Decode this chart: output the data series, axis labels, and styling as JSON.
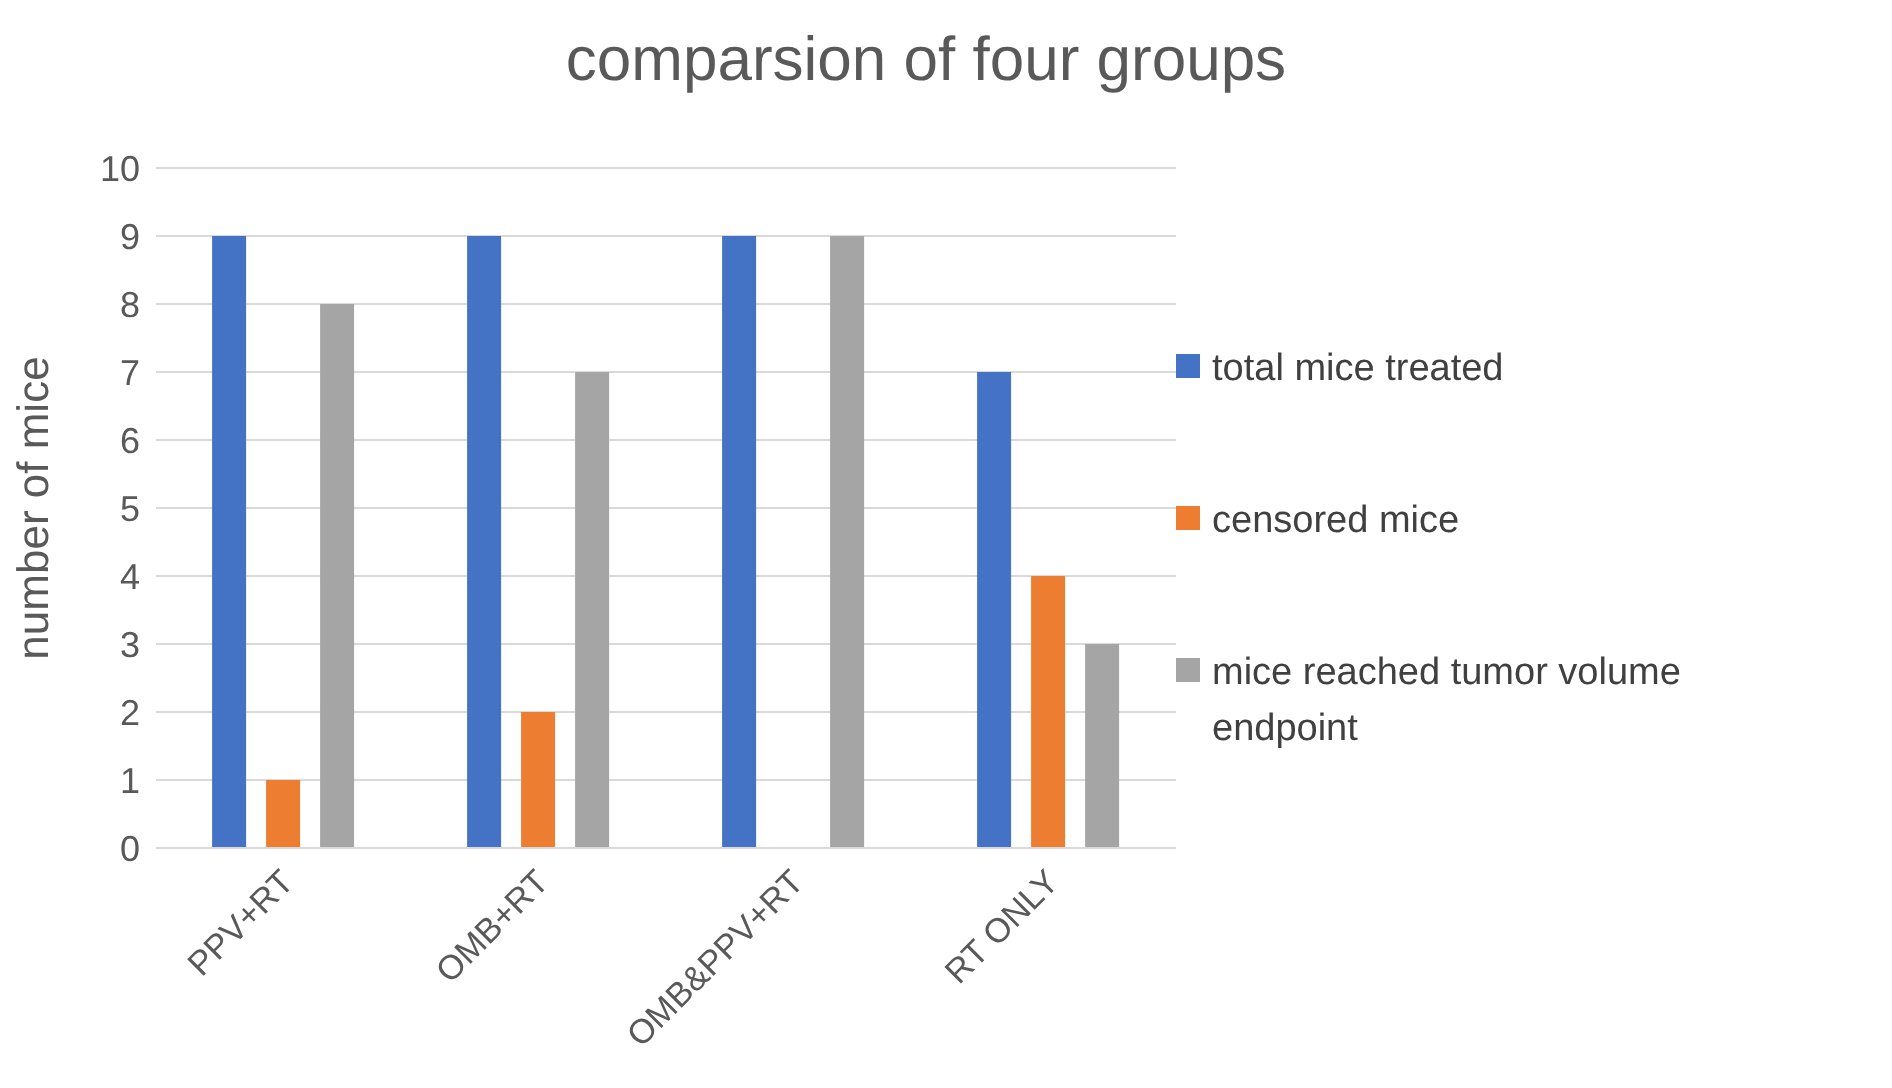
{
  "chart_data": {
    "type": "bar",
    "title": "comparsion of four groups",
    "ylabel": "number of mice",
    "categories": [
      "PPV+RT",
      "OMB+RT",
      "OMB&PPV+RT",
      "RT ONLY"
    ],
    "series": [
      {
        "name": "total mice treated",
        "color": "#4472c4",
        "values": [
          9,
          9,
          9,
          7
        ]
      },
      {
        "name": "censored mice",
        "color": "#ed7d31",
        "values": [
          1,
          2,
          0,
          4
        ]
      },
      {
        "name": "mice reached tumor volume endpoint",
        "color": "#a5a5a5",
        "values": [
          8,
          7,
          9,
          3
        ]
      }
    ],
    "ylim": [
      0,
      10
    ],
    "yticks": [
      0,
      1,
      2,
      3,
      4,
      5,
      6,
      7,
      8,
      9,
      10
    ],
    "grid": "y",
    "legend": "right"
  }
}
